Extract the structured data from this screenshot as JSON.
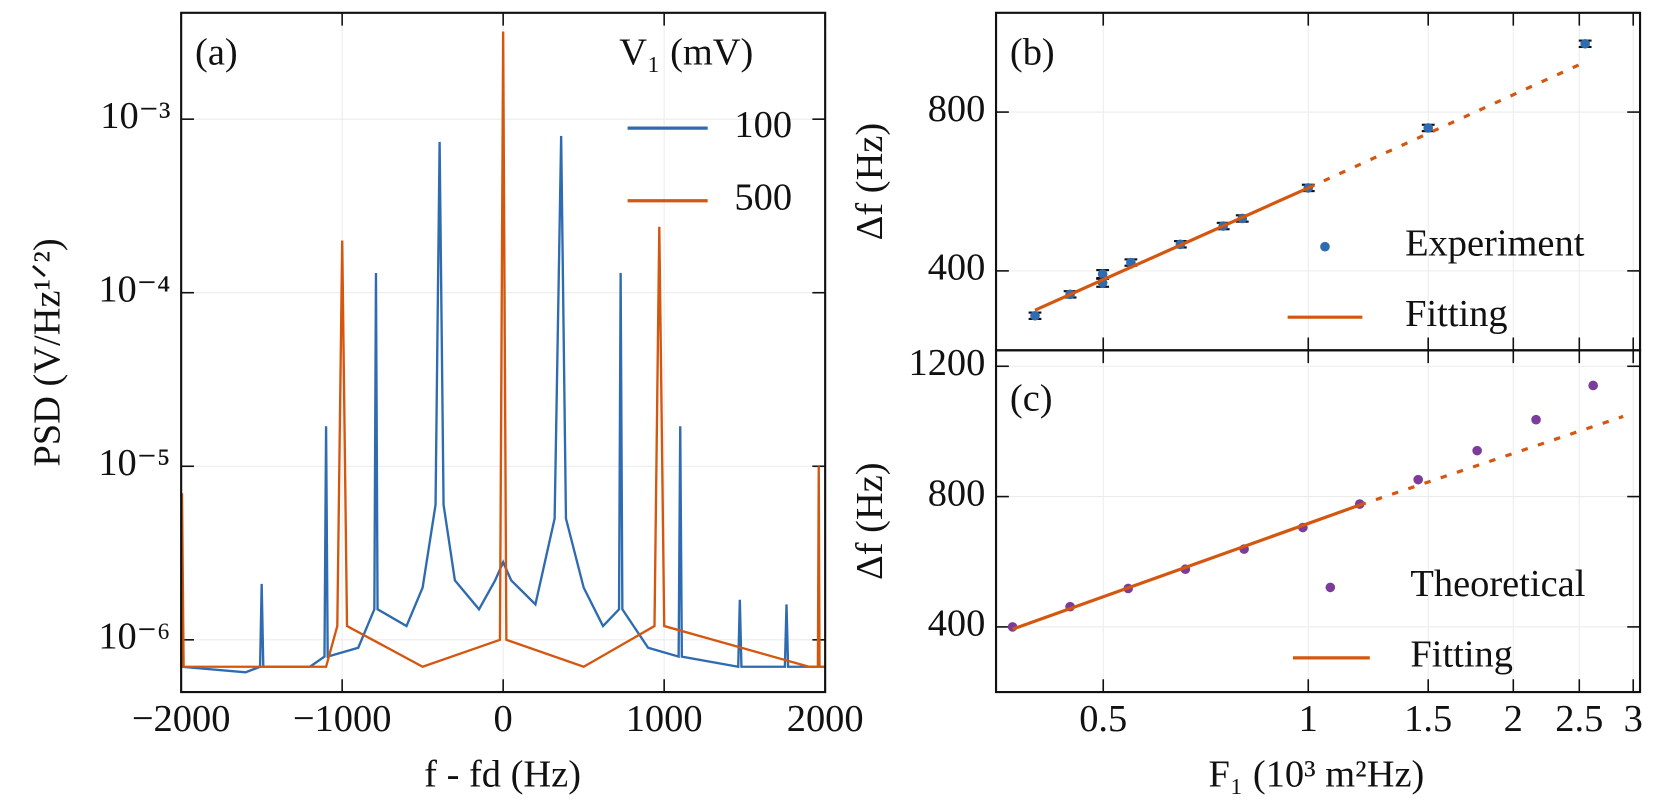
{
  "chart_data": [
    {
      "type": "line",
      "panel_label": "(a)",
      "xlabel": "f - fd (Hz)",
      "ylabel": "PSD (V/Hz¹ᐟ²)",
      "legend_title": "V₁ (mV)",
      "legend": "upper right",
      "grid": true,
      "ylog": true,
      "xlim": [
        -2000,
        2000
      ],
      "ylim": [
        5e-07,
        0.0041
      ],
      "xticks": [
        {
          "value": -2000,
          "label": "−2000"
        },
        {
          "value": -1000,
          "label": "−1000"
        },
        0,
        1000,
        2000
      ],
      "yticks": [
        {
          "value": 1e-06,
          "label": "10⁻⁶"
        },
        {
          "value": 1e-05,
          "label": "10⁻⁵"
        },
        {
          "value": 0.0001,
          "label": "10⁻⁴"
        },
        {
          "value": 0.001,
          "label": "10⁻³"
        }
      ],
      "series": [
        {
          "name": "100",
          "color": "#2e6bb0",
          "x": [
            -2000,
            -1600,
            -1510,
            -1500,
            -1490,
            -1200,
            -1110,
            -1100,
            -1090,
            -900,
            -800,
            -790,
            -780,
            -600,
            -500,
            -420,
            -395,
            -370,
            -300,
            -150,
            -50,
            0,
            50,
            200,
            320,
            360,
            390,
            500,
            620,
            720,
            730,
            740,
            900,
            1090,
            1100,
            1110,
            1460,
            1470,
            1480,
            1750,
            1760,
            1770,
            2000
          ],
          "values": [
            7e-07,
            6.5e-07,
            7e-07,
            2.1e-06,
            7e-07,
            7e-07,
            8e-07,
            1.7e-05,
            8e-07,
            9e-07,
            1.5e-06,
            0.00013,
            1.5e-06,
            1.2e-06,
            2e-06,
            6e-06,
            0.00074,
            6e-06,
            2.2e-06,
            1.5e-06,
            2.2e-06,
            2.8e-06,
            2.2e-06,
            1.6e-06,
            5e-06,
            0.0008,
            5e-06,
            2e-06,
            1.2e-06,
            1.5e-06,
            0.00013,
            1.5e-06,
            9e-07,
            8e-07,
            1.7e-05,
            8e-07,
            7e-07,
            1.7e-06,
            7e-07,
            7e-07,
            1.6e-06,
            7e-07,
            7e-07
          ]
        },
        {
          "name": "500",
          "color": "#d4570f",
          "x": [
            -2000,
            -1995,
            -1985,
            -1100,
            -1030,
            -1000,
            -970,
            -500,
            -20,
            0,
            20,
            500,
            940,
            970,
            1000,
            1900,
            1955,
            1960,
            1965,
            2000
          ],
          "values": [
            7e-07,
            7e-06,
            7e-07,
            7e-07,
            1.2e-06,
            0.0002,
            1.2e-06,
            7e-07,
            1e-06,
            0.0032,
            1e-06,
            7e-07,
            1.2e-06,
            0.00024,
            1.2e-06,
            7e-07,
            7e-07,
            1e-05,
            7e-07,
            7e-07
          ]
        }
      ]
    },
    {
      "type": "scatter",
      "panel_label": "(b)",
      "ylabel": "Δf (Hz)",
      "legend": "lower right",
      "grid": true,
      "xlog": true,
      "xlim": [
        0.348,
        3.07
      ],
      "ylim": [
        200,
        1050
      ],
      "xticks": [
        0.5,
        1,
        1.5,
        2,
        2.5,
        3
      ],
      "xtick_labels": false,
      "yticks": [
        400,
        800
      ],
      "series": [
        {
          "name": "Experiment",
          "color": "#2e6bb0",
          "x": [
            0.397,
            0.447,
            0.499,
            0.499,
            0.549,
            0.649,
            0.75,
            0.8,
            1.0,
            1.5,
            2.55
          ],
          "values": [
            287,
            341,
            392,
            370,
            421,
            467,
            513,
            532,
            609,
            760,
            972
          ],
          "errors": [
            8,
            8,
            10,
            10,
            8,
            8,
            8,
            8,
            8,
            8,
            8
          ]
        },
        {
          "name": "Fitting",
          "color": "#d4570f",
          "x": [
            0.397,
            1.0,
            2.55
          ],
          "values": [
            301,
            609,
            926
          ],
          "linestyles": [
            "solid",
            "dashed"
          ]
        }
      ]
    },
    {
      "type": "scatter",
      "panel_label": "(c)",
      "xlabel": "F₁ (10³ m²Hz)",
      "ylabel": "Δf (Hz)",
      "legend": "lower right",
      "grid": true,
      "xlog": true,
      "xlim": [
        0.348,
        3.07
      ],
      "ylim": [
        200,
        1249
      ],
      "xticks": [
        0.5,
        1,
        1.5,
        2,
        2.5,
        3
      ],
      "yticks": [
        400,
        800,
        1200
      ],
      "series": [
        {
          "name": "Theoretical",
          "color": "#7b3c9b",
          "x": [
            0.368,
            0.447,
            0.544,
            0.66,
            0.805,
            0.982,
            1.19,
            1.45,
            1.77,
            2.16,
            2.62
          ],
          "values": [
            400,
            462,
            518,
            577,
            639,
            705,
            777,
            852,
            941,
            1036,
            1141
          ]
        },
        {
          "name": "Fitting",
          "color": "#d4570f",
          "x": [
            0.368,
            1.19,
            2.9
          ],
          "values": [
            393,
            774,
            1046
          ],
          "linestyles": [
            "solid",
            "dashed"
          ]
        }
      ]
    }
  ]
}
